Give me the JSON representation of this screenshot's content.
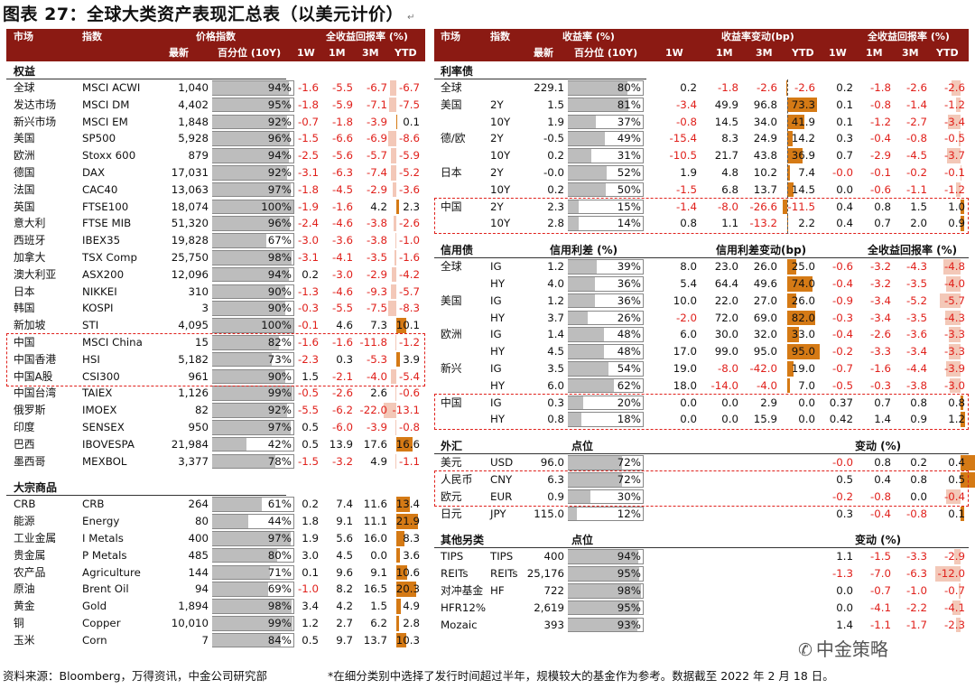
{
  "title": "图表 27：全球大类资产表现汇总表（以美元计价）",
  "footer": {
    "source": "资料来源：Bloomberg，万得资讯，中金公司研究部",
    "note": "*在细分类别中选择了发行时间超过半年，规模较大的基金作为参考。数据截至 2022 年 2 月 18 日。"
  },
  "watermark": "中金策略",
  "colors": {
    "header_bg": "#8b1a13",
    "negative": "#e0201b",
    "bar_light": "#f3c8b8",
    "bar_dark": "#d57a15",
    "bar_grey": "#bdbdbd"
  },
  "left": {
    "header": {
      "market": "市场",
      "index": "指数",
      "price_index": "价格指数",
      "total_return": "全收益回报率 (%)",
      "latest": "最新",
      "pct": "百分位 (10Y)",
      "w1": "1W",
      "m1": "1M",
      "m3": "3M",
      "ytd": "YTD"
    },
    "equity": {
      "title": "权益",
      "rows": [
        {
          "m": "全球",
          "n": "MSCI ACWI",
          "v": "1,040",
          "p": 94,
          "w1": "-1.6",
          "m1": "-5.5",
          "m3": "-6.7",
          "ytd": "-6.7"
        },
        {
          "m": "发达市场",
          "n": "MSCI DM",
          "v": "4,402",
          "p": 95,
          "w1": "-1.8",
          "m1": "-5.9",
          "m3": "-7.1",
          "ytd": "-7.5"
        },
        {
          "m": "新兴市场",
          "n": "MSCI EM",
          "v": "1,848",
          "p": 92,
          "w1": "-0.7",
          "m1": "-1.8",
          "m3": "-3.9",
          "ytd": "0.1"
        },
        {
          "m": "美国",
          "n": "SP500",
          "v": "5,928",
          "p": 96,
          "w1": "-1.5",
          "m1": "-6.6",
          "m3": "-6.9",
          "ytd": "-8.6"
        },
        {
          "m": "欧洲",
          "n": "Stoxx 600",
          "v": "879",
          "p": 94,
          "w1": "-2.5",
          "m1": "-5.6",
          "m3": "-5.7",
          "ytd": "-5.9"
        },
        {
          "m": "德国",
          "n": "DAX",
          "v": "17,031",
          "p": 92,
          "w1": "-3.1",
          "m1": "-6.3",
          "m3": "-7.4",
          "ytd": "-5.2"
        },
        {
          "m": "法国",
          "n": "CAC40",
          "v": "13,063",
          "p": 97,
          "w1": "-1.8",
          "m1": "-4.5",
          "m3": "-2.9",
          "ytd": "-3.6"
        },
        {
          "m": "英国",
          "n": "FTSE100",
          "v": "18,074",
          "p": 100,
          "w1": "-1.9",
          "m1": "-1.6",
          "m3": "4.2",
          "ytd": "2.3"
        },
        {
          "m": "意大利",
          "n": "FTSE MIB",
          "v": "51,320",
          "p": 96,
          "w1": "-2.4",
          "m1": "-4.6",
          "m3": "-3.8",
          "ytd": "-2.6"
        },
        {
          "m": "西班牙",
          "n": "IBEX35",
          "v": "19,828",
          "p": 67,
          "w1": "-3.0",
          "m1": "-3.6",
          "m3": "-3.8",
          "ytd": "-1.0"
        },
        {
          "m": "加拿大",
          "n": "TSX Comp",
          "v": "25,750",
          "p": 98,
          "w1": "-3.1",
          "m1": "-4.1",
          "m3": "-3.5",
          "ytd": "-1.6"
        },
        {
          "m": "澳大利亚",
          "n": "ASX200",
          "v": "12,096",
          "p": 94,
          "w1": "0.2",
          "m1": "-3.0",
          "m3": "-2.9",
          "ytd": "-4.2"
        },
        {
          "m": "日本",
          "n": "NIKKEI",
          "v": "310",
          "p": 90,
          "w1": "-1.3",
          "m1": "-4.6",
          "m3": "-9.3",
          "ytd": "-5.7"
        },
        {
          "m": "韩国",
          "n": "KOSPI",
          "v": "3",
          "p": 90,
          "w1": "-0.3",
          "m1": "-5.5",
          "m3": "-7.5",
          "ytd": "-8.3"
        },
        {
          "m": "新加坡",
          "n": "STI",
          "v": "4,095",
          "p": 100,
          "w1": "-0.1",
          "m1": "4.6",
          "m3": "7.3",
          "ytd": "10.1"
        },
        {
          "m": "中国",
          "n": "MSCI China",
          "v": "15",
          "p": 82,
          "w1": "-1.6",
          "m1": "-1.6",
          "m3": "-11.8",
          "ytd": "-1.2"
        },
        {
          "m": "中国香港",
          "n": "HSI",
          "v": "5,182",
          "p": 73,
          "w1": "-2.3",
          "m1": "0.3",
          "m3": "-5.3",
          "ytd": "3.9"
        },
        {
          "m": "中国A股",
          "n": "CSI300",
          "v": "961",
          "p": 90,
          "w1": "1.5",
          "m1": "-2.1",
          "m3": "-4.0",
          "ytd": "-5.4"
        },
        {
          "m": "中国台湾",
          "n": "TAIEX",
          "v": "1,126",
          "p": 99,
          "w1": "-0.5",
          "m1": "-2.6",
          "m3": "2.6",
          "ytd": "-0.6"
        },
        {
          "m": "俄罗斯",
          "n": "IMOEX",
          "v": "82",
          "p": 92,
          "w1": "-5.5",
          "m1": "-6.2",
          "m3": "-22.0",
          "ytd": "-13.1"
        },
        {
          "m": "印度",
          "n": "SENSEX",
          "v": "950",
          "p": 97,
          "w1": "0.5",
          "m1": "-6.0",
          "m3": "-3.9",
          "ytd": "-0.8"
        },
        {
          "m": "巴西",
          "n": "IBOVESPA",
          "v": "21,984",
          "p": 42,
          "w1": "0.5",
          "m1": "13.9",
          "m3": "17.6",
          "ytd": "16.6"
        },
        {
          "m": "墨西哥",
          "n": "MEXBOL",
          "v": "3,377",
          "p": 78,
          "w1": "-1.5",
          "m1": "-3.2",
          "m3": "4.9",
          "ytd": "-1.1"
        }
      ]
    },
    "commodity": {
      "title": "大宗商品",
      "rows": [
        {
          "m": "CRB",
          "n": "CRB",
          "v": "264",
          "p": 61,
          "w1": "0.2",
          "m1": "7.4",
          "m3": "11.6",
          "ytd": "13.4"
        },
        {
          "m": "能源",
          "n": "Energy",
          "v": "80",
          "p": 44,
          "w1": "1.8",
          "m1": "9.1",
          "m3": "11.1",
          "ytd": "21.9"
        },
        {
          "m": "工业金属",
          "n": "I Metals",
          "v": "400",
          "p": 97,
          "w1": "1.9",
          "m1": "5.6",
          "m3": "16.0",
          "ytd": "8.3"
        },
        {
          "m": "贵金属",
          "n": "P Metals",
          "v": "485",
          "p": 80,
          "w1": "3.0",
          "m1": "4.5",
          "m3": "0.0",
          "ytd": "3.6"
        },
        {
          "m": "农产品",
          "n": "Agriculture",
          "v": "144",
          "p": 71,
          "w1": "0.1",
          "m1": "9.6",
          "m3": "9.1",
          "ytd": "10.6"
        },
        {
          "m": "原油",
          "n": "Brent Oil",
          "v": "94",
          "p": 69,
          "w1": "-1.0",
          "m1": "8.2",
          "m3": "16.5",
          "ytd": "20.3"
        },
        {
          "m": "黄金",
          "n": "Gold",
          "v": "1,894",
          "p": 98,
          "w1": "3.4",
          "m1": "4.2",
          "m3": "1.5",
          "ytd": "4.9"
        },
        {
          "m": "铜",
          "n": "Copper",
          "v": "10,010",
          "p": 99,
          "w1": "1.2",
          "m1": "2.7",
          "m3": "6.2",
          "ytd": "2.8"
        },
        {
          "m": "玉米",
          "n": "Corn",
          "v": "7",
          "p": 84,
          "w1": "0.5",
          "m1": "9.7",
          "m3": "13.7",
          "ytd": "10.3"
        }
      ]
    }
  },
  "right": {
    "header": {
      "market": "市场",
      "index": "指数",
      "yield": "收益率 (%)",
      "yield_chg": "收益率变动(bp)",
      "total_return": "全收益回报率 (%)",
      "latest": "最新",
      "pct": "百分位 (10Y)",
      "w1": "1W",
      "m1": "1M",
      "m3": "3M",
      "ytd": "YTD"
    },
    "rates": {
      "title": "利率债",
      "rows": [
        {
          "m": "全球",
          "n": "",
          "v": "229.1",
          "p": 80,
          "c1": "0.2",
          "c2": "-1.8",
          "c3": "-2.6",
          "c4": "-2.6",
          "r1": "0.2",
          "r2": "-1.8",
          "r3": "-2.6",
          "r4": "-2.6"
        },
        {
          "m": "美国",
          "n": "2Y",
          "v": "1.5",
          "p": 81,
          "c1": "-3.4",
          "c2": "49.9",
          "c3": "96.8",
          "c4": "73.3",
          "r1": "0.1",
          "r2": "-0.8",
          "r3": "-1.4",
          "r4": "-1.2"
        },
        {
          "m": "",
          "n": "10Y",
          "v": "1.9",
          "p": 37,
          "c1": "-0.8",
          "c2": "14.5",
          "c3": "34.0",
          "c4": "41.9",
          "r1": "0.1",
          "r2": "-1.2",
          "r3": "-2.7",
          "r4": "-3.4"
        },
        {
          "m": "德/欧",
          "n": "2Y",
          "v": "-0.5",
          "p": 49,
          "c1": "-15.4",
          "c2": "8.3",
          "c3": "24.9",
          "c4": "14.2",
          "r1": "0.3",
          "r2": "-0.4",
          "r3": "-0.8",
          "r4": "-0.5"
        },
        {
          "m": "",
          "n": "10Y",
          "v": "0.2",
          "p": 31,
          "c1": "-10.5",
          "c2": "21.7",
          "c3": "43.8",
          "c4": "36.9",
          "r1": "0.7",
          "r2": "-2.9",
          "r3": "-4.5",
          "r4": "-3.7"
        },
        {
          "m": "日本",
          "n": "2Y",
          "v": "-0.0",
          "p": 52,
          "c1": "1.9",
          "c2": "4.8",
          "c3": "10.2",
          "c4": "7.4",
          "r1": "-0.0",
          "r2": "-0.1",
          "r3": "-0.2",
          "r4": "-0.1"
        },
        {
          "m": "",
          "n": "10Y",
          "v": "0.2",
          "p": 50,
          "c1": "-1.5",
          "c2": "6.8",
          "c3": "13.7",
          "c4": "14.5",
          "r1": "0.0",
          "r2": "-0.6",
          "r3": "-1.1",
          "r4": "-1.2"
        },
        {
          "m": "中国",
          "n": "2Y",
          "v": "2.3",
          "p": 15,
          "c1": "-1.4",
          "c2": "-8.0",
          "c3": "-26.6",
          "c4": "-11.5",
          "r1": "0.4",
          "r2": "0.8",
          "r3": "1.5",
          "r4": "1.0"
        },
        {
          "m": "",
          "n": "10Y",
          "v": "2.8",
          "p": 14,
          "c1": "0.8",
          "c2": "1.1",
          "c3": "-13.2",
          "c4": "2.2",
          "r1": "0.4",
          "r2": "0.7",
          "r3": "2.0",
          "r4": "0.9"
        }
      ]
    },
    "credit": {
      "title": "信用债",
      "spread": "信用利差 (%)",
      "spread_chg": "信用利差变动(bp)",
      "total_return": "全收益回报率 (%)",
      "rows": [
        {
          "m": "全球",
          "n": "IG",
          "v": "1.2",
          "p": 39,
          "c1": "8.0",
          "c2": "23.0",
          "c3": "26.0",
          "c4": "25.0",
          "r1": "-0.6",
          "r2": "-3.2",
          "r3": "-4.3",
          "r4": "-4.8"
        },
        {
          "m": "",
          "n": "HY",
          "v": "4.0",
          "p": 36,
          "c1": "5.4",
          "c2": "64.4",
          "c3": "49.6",
          "c4": "74.0",
          "r1": "-0.4",
          "r2": "-3.2",
          "r3": "-3.5",
          "r4": "-4.0"
        },
        {
          "m": "美国",
          "n": "IG",
          "v": "1.2",
          "p": 36,
          "c1": "10.0",
          "c2": "22.0",
          "c3": "27.0",
          "c4": "26.0",
          "r1": "-0.9",
          "r2": "-3.4",
          "r3": "-5.2",
          "r4": "-5.7"
        },
        {
          "m": "",
          "n": "HY",
          "v": "3.7",
          "p": 26,
          "c1": "-2.0",
          "c2": "72.0",
          "c3": "69.0",
          "c4": "82.0",
          "r1": "-0.3",
          "r2": "-3.4",
          "r3": "-3.5",
          "r4": "-4.3"
        },
        {
          "m": "欧洲",
          "n": "IG",
          "v": "1.4",
          "p": 48,
          "c1": "6.0",
          "c2": "30.0",
          "c3": "32.0",
          "c4": "33.0",
          "r1": "-0.4",
          "r2": "-2.6",
          "r3": "-3.6",
          "r4": "-3.3"
        },
        {
          "m": "",
          "n": "HY",
          "v": "4.5",
          "p": 48,
          "c1": "17.0",
          "c2": "99.0",
          "c3": "95.0",
          "c4": "95.0",
          "r1": "-0.2",
          "r2": "-3.3",
          "r3": "-3.4",
          "r4": "-3.3"
        },
        {
          "m": "新兴",
          "n": "IG",
          "v": "3.5",
          "p": 54,
          "c1": "19.0",
          "c2": "-8.0",
          "c3": "-42.0",
          "c4": "19.0",
          "r1": "-0.7",
          "r2": "-1.6",
          "r3": "-4.4",
          "r4": "-3.9"
        },
        {
          "m": "",
          "n": "HY",
          "v": "6.0",
          "p": 62,
          "c1": "18.0",
          "c2": "-14.0",
          "c3": "-4.0",
          "c4": "7.0",
          "r1": "-0.5",
          "r2": "-0.3",
          "r3": "-3.8",
          "r4": "-3.0"
        },
        {
          "m": "中国",
          "n": "IG",
          "v": "0.3",
          "p": 20,
          "c1": "0.0",
          "c2": "0.0",
          "c3": "2.9",
          "c4": "0.0",
          "r1": "0.37",
          "r2": "0.7",
          "r3": "0.8",
          "r4": "0.8"
        },
        {
          "m": "",
          "n": "HY",
          "v": "0.8",
          "p": 18,
          "c1": "0.0",
          "c2": "0.0",
          "c3": "15.9",
          "c4": "0.0",
          "r1": "0.42",
          "r2": "1.4",
          "r3": "0.9",
          "r4": "1.2"
        }
      ]
    },
    "fx": {
      "title": "外汇",
      "points": "点位",
      "change": "变动 (%)",
      "rows": [
        {
          "m": "美元",
          "n": "USD",
          "v": "96.0",
          "p": 72,
          "r1": "-0.0",
          "r2": "0.8",
          "r3": "0.2",
          "r4": "0.4"
        },
        {
          "m": "人民币",
          "n": "CNY",
          "v": "6.3",
          "p": 72,
          "r1": "0.5",
          "r2": "0.4",
          "r3": "0.8",
          "r4": "0.5"
        },
        {
          "m": "欧元",
          "n": "EUR",
          "v": "0.9",
          "p": 30,
          "r1": "-0.2",
          "r2": "-0.8",
          "r3": "0.0",
          "r4": "-0.4"
        },
        {
          "m": "日元",
          "n": "JPY",
          "v": "115.0",
          "p": 12,
          "r1": "0.3",
          "r2": "-0.4",
          "r3": "-0.8",
          "r4": "0.1"
        }
      ]
    },
    "alt": {
      "title": "其他另类",
      "points": "点位",
      "change": "变动 (%)",
      "rows": [
        {
          "m": "TIPS",
          "n": "TIPS",
          "v": "400",
          "p": 94,
          "r1": "1.1",
          "r2": "-1.5",
          "r3": "-3.3",
          "r4": "-2.9"
        },
        {
          "m": "REITs",
          "n": "REITs",
          "v": "25,176",
          "p": 95,
          "r1": "-1.3",
          "r2": "-7.0",
          "r3": "-6.3",
          "r4": "-12.0"
        },
        {
          "m": "对冲基金",
          "n": "HF",
          "v": "722",
          "p": 98,
          "r1": "0.0",
          "r2": "-0.7",
          "r3": "-1.0",
          "r4": "-0.7"
        },
        {
          "m": "HFR12%",
          "n": "",
          "v": "2,619",
          "p": 95,
          "r1": "0.0",
          "r2": "-4.1",
          "r3": "-2.2",
          "r4": "-4.1"
        },
        {
          "m": "Mozaic",
          "n": "",
          "v": "393",
          "p": 93,
          "r1": "1.4",
          "r2": "-1.1",
          "r3": "-1.7",
          "r4": "-2.3"
        }
      ]
    }
  }
}
